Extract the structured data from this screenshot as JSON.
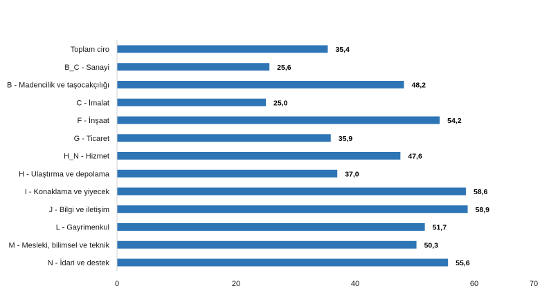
{
  "chart_data": {
    "type": "bar",
    "orientation": "horizontal",
    "title": "",
    "xlabel": "",
    "ylabel": "",
    "categories": [
      "Toplam ciro",
      "B_C - Sanayi",
      "B - Madencilik ve taşocakçılığı",
      "C - İmalat",
      "F - İnşaat",
      "G - Ticaret",
      "H_N - Hizmet",
      "H - Ulaştırma ve depolama",
      "I - Konaklama ve yiyecek",
      "J - Bilgi ve iletişim",
      "L - Gayrimenkul",
      "M - Mesleki, bilimsel ve teknik",
      "N - İdari ve destek"
    ],
    "values": [
      35.4,
      25.6,
      48.2,
      25.0,
      54.2,
      35.9,
      47.6,
      37.0,
      58.6,
      58.9,
      51.7,
      50.3,
      55.6
    ],
    "value_labels": [
      "35,4",
      "25,6",
      "48,2",
      "25,0",
      "54,2",
      "35,9",
      "47,6",
      "37,0",
      "58,6",
      "58,9",
      "51,7",
      "50,3",
      "55,6"
    ],
    "xlim": [
      0,
      70
    ],
    "xticks": [
      0,
      20,
      40,
      60,
      70
    ],
    "grid": false,
    "legend": "none",
    "bar_color": "#2e75b6"
  }
}
